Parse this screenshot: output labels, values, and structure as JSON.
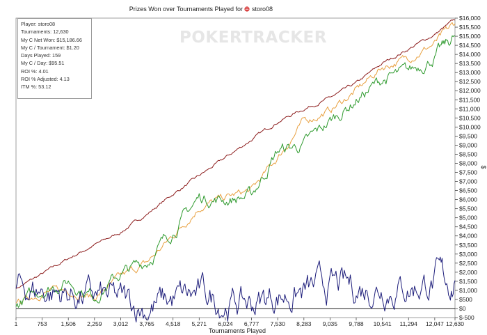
{
  "chart_data": {
    "type": "line",
    "title": "Prizes Won over Tournaments Played for",
    "player_name": "storo08",
    "xlabel": "Tournaments Played",
    "ylabel": "$",
    "watermark": "POKERTRACKER",
    "xlim": [
      1,
      12630
    ],
    "ylim": [
      -500,
      16000
    ],
    "x_ticks": [
      "1",
      "753",
      "1,506",
      "2,259",
      "3,012",
      "3,765",
      "4,518",
      "5,271",
      "6,024",
      "6,777",
      "7,530",
      "8,283",
      "9,035",
      "9,788",
      "10,541",
      "11,294",
      "12,047",
      "12,630"
    ],
    "x_tick_values": [
      1,
      753,
      1506,
      2259,
      3012,
      3765,
      4518,
      5271,
      6024,
      6777,
      7530,
      8283,
      9035,
      9788,
      10541,
      11294,
      12047,
      12630
    ],
    "y_ticks": [
      "$-500",
      "$0",
      "$500",
      "$1,000",
      "$1,500",
      "$2,000",
      "$2,500",
      "$3,000",
      "$3,500",
      "$4,000",
      "$4,500",
      "$5,000",
      "$5,500",
      "$6,000",
      "$6,500",
      "$7,000",
      "$7,500",
      "$8,000",
      "$8,500",
      "$9,000",
      "$9,500",
      "$10,000",
      "$10,500",
      "$11,000",
      "$11,500",
      "$12,000",
      "$12,500",
      "$13,000",
      "$13,500",
      "$14,000",
      "$14,500",
      "$15,000",
      "$15,500",
      "$16,000"
    ],
    "y_tick_values": [
      -500,
      0,
      500,
      1000,
      1500,
      2000,
      2500,
      3000,
      3500,
      4000,
      4500,
      5000,
      5500,
      6000,
      6500,
      7000,
      7500,
      8000,
      8500,
      9000,
      9500,
      10000,
      10500,
      11000,
      11500,
      12000,
      12500,
      13000,
      13500,
      14000,
      14500,
      15000,
      15500,
      16000
    ],
    "grid": false,
    "series": [
      {
        "color": "#8b1a1a",
        "noise": 0.012,
        "x": [
          1,
          753,
          1506,
          2259,
          3012,
          3765,
          4518,
          5271,
          6024,
          6777,
          7530,
          8283,
          9035,
          9788,
          10541,
          11294,
          12047,
          12630
        ],
        "y": [
          1100,
          1900,
          2750,
          3500,
          4200,
          5200,
          6300,
          7300,
          8300,
          9300,
          10300,
          11000,
          11600,
          12400,
          13500,
          14300,
          15100,
          15900
        ]
      },
      {
        "color": "#e8a040",
        "noise": 0.03,
        "x": [
          1,
          753,
          1506,
          2259,
          3012,
          3765,
          4518,
          5271,
          6024,
          6777,
          7530,
          8283,
          9035,
          9788,
          10541,
          11294,
          12047,
          12630
        ],
        "y": [
          300,
          900,
          1000,
          600,
          1700,
          2500,
          4000,
          5600,
          6100,
          6500,
          8300,
          10300,
          10900,
          12000,
          13300,
          13800,
          14600,
          15700
        ]
      },
      {
        "color": "#2e9a2e",
        "noise": 0.05,
        "x": [
          1,
          753,
          1506,
          2259,
          3012,
          3765,
          4518,
          5271,
          6024,
          6777,
          7530,
          8283,
          9035,
          9788,
          10541,
          11294,
          12047,
          12630
        ],
        "y": [
          100,
          1050,
          1500,
          700,
          1900,
          2600,
          4300,
          6100,
          6000,
          6200,
          8700,
          9000,
          10300,
          11500,
          12600,
          13000,
          13900,
          15000
        ]
      },
      {
        "color": "#1c1c7a",
        "noise": 0.12,
        "x": [
          1,
          753,
          1506,
          2259,
          3012,
          3765,
          4518,
          5271,
          6024,
          6777,
          7530,
          8283,
          9035,
          9788,
          10541,
          11294,
          12047,
          12630
        ],
        "y": [
          1100,
          1000,
          800,
          600,
          350,
          100,
          450,
          700,
          400,
          250,
          750,
          850,
          1200,
          1100,
          1300,
          1200,
          1550,
          1550
        ]
      }
    ]
  },
  "stats": [
    "Player: storo08",
    "Tournaments: 12,630",
    "My C Net Won: $15,186.66",
    "My C / Tournament: $1.20",
    "Days Played: 159",
    "My C / Day: $95.51",
    "ROI %: 4.01",
    "ROI % Adjusted: 4.13",
    "ITM %: 53.12"
  ]
}
